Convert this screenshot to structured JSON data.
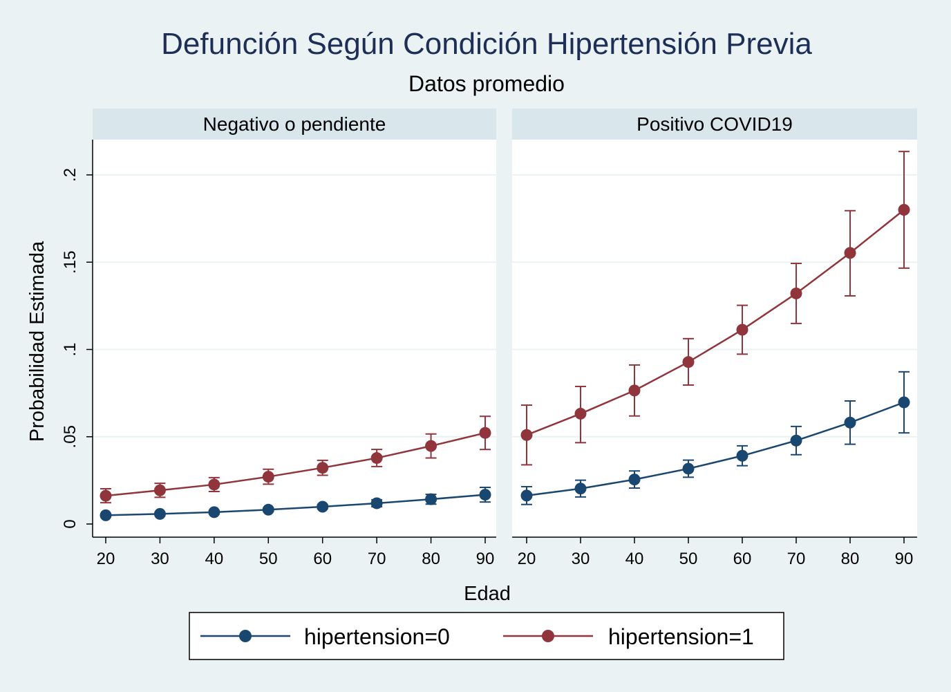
{
  "chart_data": {
    "type": "line",
    "title": "Defunción Según Condición Hipertensión Previa",
    "subtitle": "Datos promedio",
    "xlabel": "Edad",
    "ylabel": "Probabilidad Estimada",
    "x": [
      20,
      30,
      40,
      50,
      60,
      70,
      80,
      90
    ],
    "x_ticks": [
      "20",
      "30",
      "40",
      "50",
      "60",
      "70",
      "80",
      "90"
    ],
    "xlim": [
      20,
      90
    ],
    "ylim": [
      0,
      0.22
    ],
    "y_ticks": [
      {
        "value": 0,
        "label": "0"
      },
      {
        "value": 0.05,
        "label": ".05"
      },
      {
        "value": 0.1,
        "label": ".1"
      },
      {
        "value": 0.15,
        "label": ".15"
      },
      {
        "value": 0.2,
        "label": ".2"
      }
    ],
    "grid": true,
    "legend_position": "bottom",
    "legend": [
      {
        "name": "hipertension=0",
        "color": "#1a476f"
      },
      {
        "name": "hipertension=1",
        "color": "#90353b"
      }
    ],
    "panels": [
      {
        "title": "Negativo o pendiente",
        "series": [
          {
            "name": "hipertension=0",
            "color": "#1a476f",
            "values": [
              0.005,
              0.0058,
              0.0068,
              0.0082,
              0.0099,
              0.0119,
              0.0142,
              0.0168
            ],
            "lower": [
              0.0042,
              0.005,
              0.0059,
              0.0072,
              0.0087,
              0.0099,
              0.0114,
              0.0126
            ],
            "upper": [
              0.0058,
              0.0066,
              0.0077,
              0.0092,
              0.0111,
              0.0139,
              0.017,
              0.021
            ]
          },
          {
            "name": "hipertension=1",
            "color": "#90353b",
            "values": [
              0.0162,
              0.0193,
              0.0226,
              0.0271,
              0.0322,
              0.0378,
              0.0447,
              0.0522
            ],
            "lower": [
              0.0122,
              0.0153,
              0.0186,
              0.0228,
              0.0279,
              0.0329,
              0.0378,
              0.0427
            ],
            "upper": [
              0.0202,
              0.0233,
              0.0266,
              0.0314,
              0.0365,
              0.0427,
              0.0516,
              0.0617
            ]
          }
        ]
      },
      {
        "title": "Positivo COVID19",
        "series": [
          {
            "name": "hipertension=0",
            "color": "#1a476f",
            "values": [
              0.0163,
              0.0203,
              0.0255,
              0.0317,
              0.0391,
              0.0478,
              0.0581,
              0.0697
            ],
            "lower": [
              0.0112,
              0.0155,
              0.0206,
              0.0268,
              0.0334,
              0.0397,
              0.0457,
              0.0522
            ],
            "upper": [
              0.0214,
              0.0251,
              0.0304,
              0.0366,
              0.0448,
              0.0559,
              0.0705,
              0.0872
            ]
          },
          {
            "name": "hipertension=1",
            "color": "#90353b",
            "values": [
              0.051,
              0.0632,
              0.0765,
              0.0928,
              0.1113,
              0.1321,
              0.1553,
              0.18
            ],
            "lower": [
              0.0339,
              0.0466,
              0.0619,
              0.0796,
              0.0973,
              0.1149,
              0.1307,
              0.1466
            ],
            "upper": [
              0.0681,
              0.0788,
              0.0911,
              0.1062,
              0.1253,
              0.1493,
              0.1795,
              0.2134
            ]
          }
        ]
      }
    ]
  }
}
